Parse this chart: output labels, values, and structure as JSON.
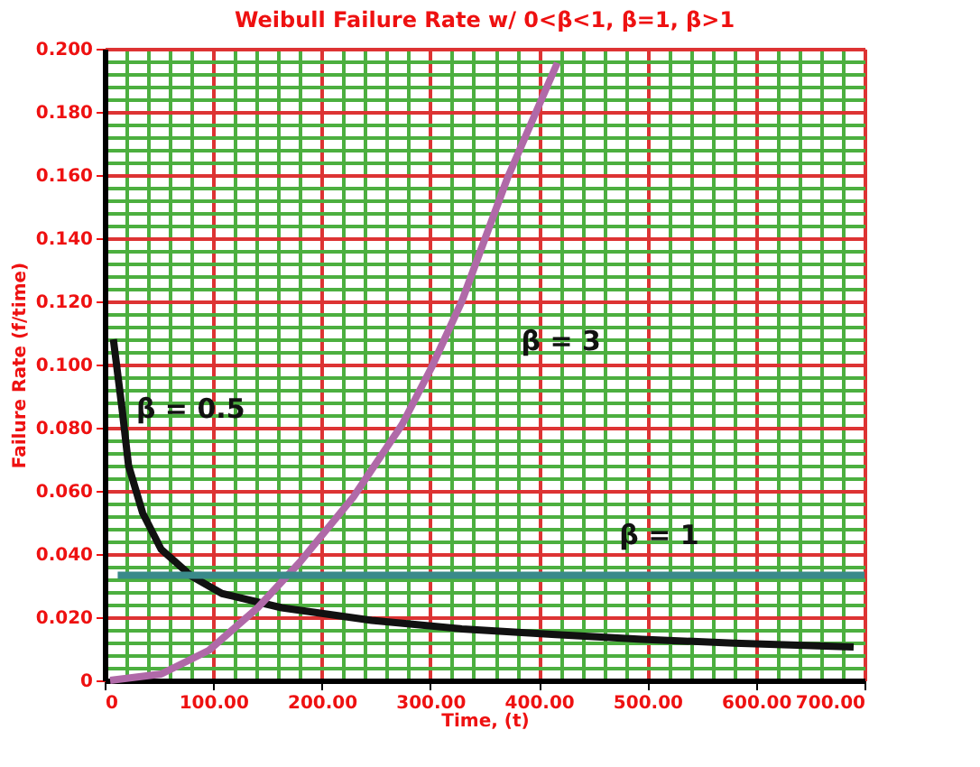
{
  "chart_data": {
    "type": "line",
    "title": "Weibull Failure Rate w/ 0<β<1, β=1, β>1",
    "xlabel": "Time, (t)",
    "ylabel": "Failure Rate (f/time)",
    "xlim": [
      0,
      700
    ],
    "ylim": [
      0,
      0.2
    ],
    "xticks": [
      0,
      {
        "value": 20,
        "label": null
      },
      {
        "value": 40,
        "label": null
      },
      {
        "value": 60,
        "label": null
      },
      {
        "value": 80,
        "label": null
      },
      {
        "value": 100,
        "label": "100.00"
      },
      {
        "value": 120,
        "label": null
      },
      {
        "value": 140,
        "label": null
      },
      {
        "value": 160,
        "label": null
      },
      {
        "value": 180,
        "label": null
      },
      {
        "value": 200,
        "label": "200.00"
      },
      {
        "value": 220,
        "label": null
      },
      {
        "value": 240,
        "label": null
      },
      {
        "value": 260,
        "label": null
      },
      {
        "value": 280,
        "label": null
      },
      {
        "value": 300,
        "label": "300.00"
      },
      {
        "value": 320,
        "label": null
      },
      {
        "value": 340,
        "label": null
      },
      {
        "value": 360,
        "label": null
      },
      {
        "value": 380,
        "label": null
      },
      {
        "value": 400,
        "label": "400.00"
      },
      {
        "value": 420,
        "label": null
      },
      {
        "value": 440,
        "label": null
      },
      {
        "value": 460,
        "label": null
      },
      {
        "value": 480,
        "label": null
      },
      {
        "value": 500,
        "label": "500.00"
      },
      {
        "value": 520,
        "label": null
      },
      {
        "value": 540,
        "label": null
      },
      {
        "value": 560,
        "label": null
      },
      {
        "value": 580,
        "label": null
      },
      {
        "value": 600,
        "label": "600.00"
      },
      {
        "value": 620,
        "label": null
      },
      {
        "value": 640,
        "label": null
      },
      {
        "value": 660,
        "label": null
      },
      {
        "value": 680,
        "label": null
      },
      {
        "value": 700,
        "label": "700.00"
      }
    ],
    "yticks": [
      0,
      {
        "value": 0.004,
        "label": null
      },
      {
        "value": 0.008,
        "label": null
      },
      {
        "value": 0.012,
        "label": null
      },
      {
        "value": 0.016,
        "label": null
      },
      {
        "value": 0.02,
        "label": "0.020"
      },
      {
        "value": 0.024,
        "label": null
      },
      {
        "value": 0.028,
        "label": null
      },
      {
        "value": 0.032,
        "label": null
      },
      {
        "value": 0.036,
        "label": null
      },
      {
        "value": 0.04,
        "label": "0.040"
      },
      {
        "value": 0.044,
        "label": null
      },
      {
        "value": 0.048,
        "label": null
      },
      {
        "value": 0.052,
        "label": null
      },
      {
        "value": 0.056,
        "label": null
      },
      {
        "value": 0.06,
        "label": "0.060"
      },
      {
        "value": 0.064,
        "label": null
      },
      {
        "value": 0.068,
        "label": null
      },
      {
        "value": 0.072,
        "label": null
      },
      {
        "value": 0.076,
        "label": null
      },
      {
        "value": 0.08,
        "label": "0.080"
      },
      {
        "value": 0.084,
        "label": null
      },
      {
        "value": 0.088,
        "label": null
      },
      {
        "value": 0.092,
        "label": null
      },
      {
        "value": 0.096,
        "label": null
      },
      {
        "value": 0.1,
        "label": "0.100"
      },
      {
        "value": 0.104,
        "label": null
      },
      {
        "value": 0.108,
        "label": null
      },
      {
        "value": 0.112,
        "label": null
      },
      {
        "value": 0.116,
        "label": null
      },
      {
        "value": 0.12,
        "label": "0.120"
      },
      {
        "value": 0.124,
        "label": null
      },
      {
        "value": 0.128,
        "label": null
      },
      {
        "value": 0.132,
        "label": null
      },
      {
        "value": 0.136,
        "label": null
      },
      {
        "value": 0.14,
        "label": "0.140"
      },
      {
        "value": 0.144,
        "label": null
      },
      {
        "value": 0.148,
        "label": null
      },
      {
        "value": 0.152,
        "label": null
      },
      {
        "value": 0.156,
        "label": null
      },
      {
        "value": 0.16,
        "label": "0.160"
      },
      {
        "value": 0.164,
        "label": null
      },
      {
        "value": 0.168,
        "label": null
      },
      {
        "value": 0.172,
        "label": null
      },
      {
        "value": 0.176,
        "label": null
      },
      {
        "value": 0.18,
        "label": "0.180"
      },
      {
        "value": 0.184,
        "label": null
      },
      {
        "value": 0.188,
        "label": null
      },
      {
        "value": 0.192,
        "label": null
      },
      {
        "value": 0.196,
        "label": null
      },
      {
        "value": 0.2,
        "label": "0.200"
      }
    ],
    "grid": true,
    "legend": false,
    "marker": "none",
    "line_style": "solid",
    "series": [
      {
        "name": "β = 0.5",
        "color": "#111111",
        "x": [
          8,
          16,
          22,
          35,
          52,
          80,
          108,
          163,
          246,
          329,
          412,
          495,
          580,
          690
        ],
        "values": [
          0.108,
          0.086,
          0.068,
          0.053,
          0.0415,
          0.033,
          0.0275,
          0.023,
          0.019,
          0.0163,
          0.0146,
          0.013,
          0.0118,
          0.0106
        ]
      },
      {
        "name": "β = 3",
        "color": "#b069a8",
        "x": [
          5,
          52,
          96,
          141,
          180,
          229,
          274,
          301,
          329,
          371,
          417
        ],
        "values": [
          0,
          0.002,
          0.0095,
          0.023,
          0.0375,
          0.058,
          0.081,
          0.099,
          0.12,
          0.159,
          0.1955
        ]
      },
      {
        "name": "β = 1",
        "color": "#3a8a8a",
        "x": [
          12,
          700
        ],
        "values": [
          0.0333,
          0.0333
        ]
      }
    ]
  }
}
